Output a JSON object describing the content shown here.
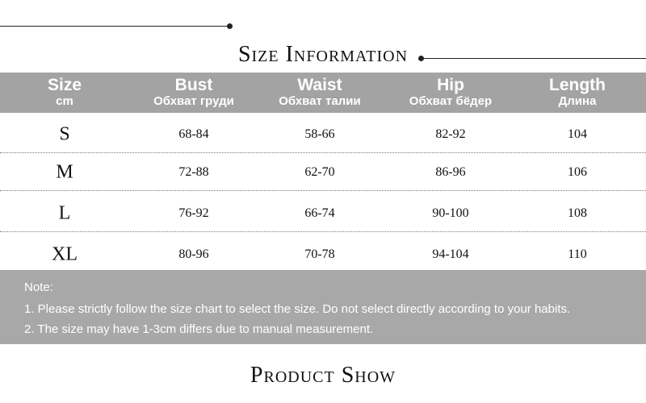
{
  "size_info": {
    "title": "Size Information",
    "columns": [
      {
        "label": "Size",
        "sub": "cm"
      },
      {
        "label": "Bust",
        "sub": "Обхват груди"
      },
      {
        "label": "Waist",
        "sub": "Обхват талии"
      },
      {
        "label": "Hip",
        "sub": "Обхват бёдер"
      },
      {
        "label": "Length",
        "sub": "Длина"
      }
    ],
    "rows": [
      [
        "S",
        "68-84",
        "58-66",
        "82-92",
        104
      ],
      [
        "M",
        "72-88",
        "62-70",
        "86-96",
        106
      ],
      [
        "L",
        "76-92",
        "66-74",
        "90-100",
        108
      ],
      [
        "XL",
        "80-96",
        "70-78",
        "94-104",
        110
      ]
    ]
  },
  "notes": {
    "heading": "Note:",
    "items": [
      "1. Please strictly follow the size chart to select the size. Do not select directly according to your habits.",
      "2. The size may have 1-3cm differs due to manual measurement."
    ]
  },
  "product_show": {
    "title": "Product Show"
  }
}
